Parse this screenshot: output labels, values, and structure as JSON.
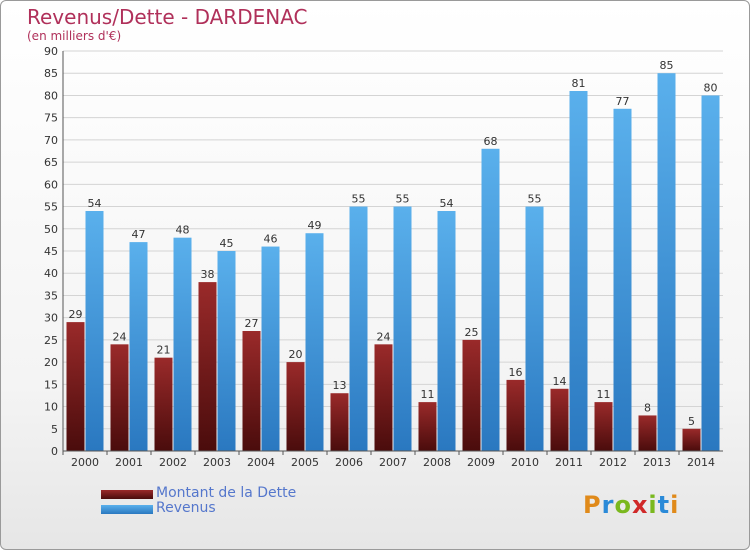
{
  "title": "Revenus/Dette - DARDENAC",
  "subtitle": "(en milliers d'€)",
  "logo": {
    "letters": [
      "P",
      "r",
      "o",
      "x",
      "i",
      "t",
      "i"
    ],
    "colors": [
      "#e08a1a",
      "#2a8ad8",
      "#7ab81e",
      "#d02828",
      "#7ab81e",
      "#2a8ad8",
      "#e08a1a"
    ]
  },
  "colors": {
    "dette": "#6e1a1a",
    "revenus": "#3a8fd6"
  },
  "chart_data": {
    "type": "bar",
    "categories": [
      "2000",
      "2001",
      "2002",
      "2003",
      "2004",
      "2005",
      "2006",
      "2007",
      "2008",
      "2009",
      "2010",
      "2011",
      "2012",
      "2013",
      "2014"
    ],
    "series": [
      {
        "name": "Montant de la Dette",
        "values": [
          29,
          24,
          21,
          38,
          27,
          20,
          13,
          24,
          11,
          25,
          16,
          14,
          11,
          8,
          5
        ]
      },
      {
        "name": "Revenus",
        "values": [
          54,
          47,
          48,
          45,
          46,
          49,
          55,
          55,
          54,
          68,
          55,
          81,
          77,
          85,
          80
        ]
      }
    ],
    "yticks": [
      0,
      5,
      10,
      15,
      20,
      25,
      30,
      35,
      40,
      45,
      50,
      55,
      60,
      65,
      70,
      75,
      80,
      85,
      90
    ],
    "ylim": [
      0,
      90
    ],
    "grid": true,
    "legend": "bottom-left"
  }
}
